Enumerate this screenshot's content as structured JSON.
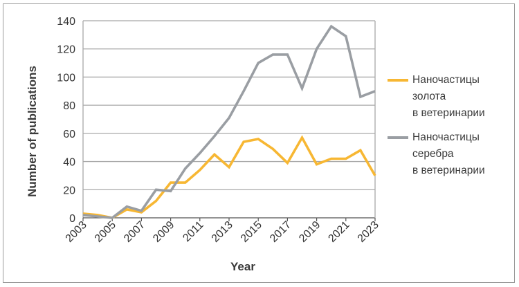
{
  "chart_data": {
    "type": "line",
    "title": "",
    "xlabel": "Year",
    "ylabel": "Number of publications",
    "x": [
      2003,
      2004,
      2005,
      2006,
      2007,
      2008,
      2009,
      2010,
      2011,
      2012,
      2013,
      2014,
      2015,
      2016,
      2017,
      2018,
      2019,
      2020,
      2021,
      2022,
      2023
    ],
    "x_tick_labels": [
      "2003",
      "2005",
      "2007",
      "2009",
      "2011",
      "2013",
      "2015",
      "2017",
      "2019",
      "2021",
      "2023"
    ],
    "ylim": [
      0,
      140
    ],
    "y_ticks": [
      0,
      20,
      40,
      60,
      80,
      100,
      120,
      140
    ],
    "grid": "horizontal",
    "legend_position": "right",
    "series": [
      {
        "name": "Наночастицы\nзолота\nв ветеринарии",
        "color": "#f7b733",
        "values": [
          3,
          2,
          0,
          6,
          4,
          12,
          25,
          25,
          34,
          45,
          36,
          54,
          56,
          49,
          39,
          57,
          38,
          42,
          42,
          48,
          30
        ]
      },
      {
        "name": "Наночастицы\nсеребра\nв ветеринарии",
        "color": "#9a9ea3",
        "values": [
          2,
          1,
          0,
          8,
          5,
          20,
          19,
          35,
          46,
          58,
          71,
          90,
          110,
          116,
          116,
          92,
          120,
          136,
          129,
          86,
          90
        ]
      }
    ]
  }
}
